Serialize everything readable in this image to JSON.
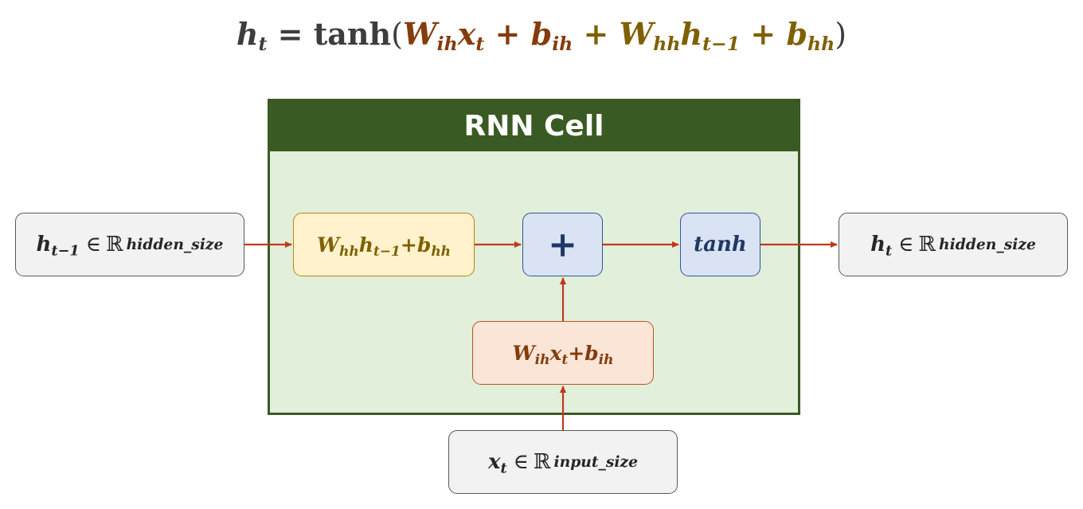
{
  "equation": {
    "lhs": "h",
    "lhs_sub": "t",
    "equals": " = ",
    "fn": "tanh",
    "open": "(",
    "w_ih": "W",
    "w_ih_sub": "ih",
    "x": "x",
    "x_sub": "t",
    "plus": " + ",
    "b_ih": "b",
    "b_ih_sub": "ih",
    "w_hh": "W",
    "w_hh_sub": "hh",
    "h_prev": "h",
    "h_prev_sub": "t−1",
    "b_hh": "b",
    "b_hh_sub": "hh",
    "close": ")"
  },
  "cell": {
    "title": "RNN Cell"
  },
  "inputs": {
    "h_prev": {
      "var": "h",
      "sub": "t−1",
      "in": "∈",
      "reals": "ℝ",
      "dim": "hidden_size"
    },
    "x_t": {
      "var": "x",
      "sub": "t",
      "in": "∈",
      "reals": "ℝ",
      "dim": "input_size"
    }
  },
  "output": {
    "var": "h",
    "sub": "t",
    "in": "∈",
    "reals": "ℝ",
    "dim": "hidden_size"
  },
  "nodes": {
    "hh_transform": {
      "w": "W",
      "w_sub": "hh",
      "h": "h",
      "h_sub": "t−1",
      "plus": " + ",
      "b": "b",
      "b_sub": "hh"
    },
    "ih_transform": {
      "w": "W",
      "w_sub": "ih",
      "x": "x",
      "x_sub": "t",
      "plus": " + ",
      "b": "b",
      "b_sub": "ih"
    },
    "sum": {
      "symbol": "+"
    },
    "activation": {
      "label": "tanh"
    }
  },
  "colors": {
    "cell_header": "#3a5a23",
    "cell_body": "#e2efda",
    "hh_fill": "#fff2cc",
    "hh_text": "#7f6000",
    "ih_fill": "#fbe5d6",
    "ih_text": "#843c0c",
    "op_fill": "#dae3f3",
    "op_text": "#1f3864",
    "io_fill": "#f2f2f2",
    "arrow": "#c0391b"
  }
}
